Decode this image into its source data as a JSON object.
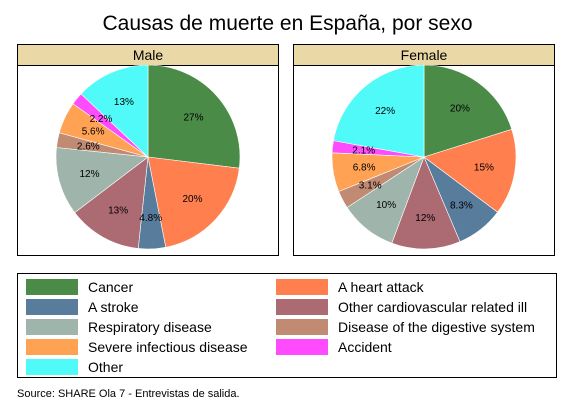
{
  "title": "Causas de muerte en España, por sexo",
  "source": "Source: SHARE Ola 7 - Entrevistas de salida.",
  "chart_data": [
    {
      "type": "pie",
      "panel_label": "Male",
      "start": "12 o'clock, clockwise",
      "slices": [
        {
          "category": "Cancer",
          "value": 27,
          "label": "27%"
        },
        {
          "category": "A heart attack",
          "value": 20,
          "label": "20%"
        },
        {
          "category": "A stroke",
          "value": 4.8,
          "label": "4.8%"
        },
        {
          "category": "Other cardiovascular related ill",
          "value": 13,
          "label": "13%"
        },
        {
          "category": "Respiratory disease",
          "value": 12,
          "label": "12%"
        },
        {
          "category": "Disease of the digestive system",
          "value": 2.6,
          "label": "2.6%"
        },
        {
          "category": "Severe infectious disease",
          "value": 5.6,
          "label": "5.6%"
        },
        {
          "category": "Accident",
          "value": 2.2,
          "label": "2.2%"
        },
        {
          "category": "Other",
          "value": 13,
          "label": "13%"
        }
      ]
    },
    {
      "type": "pie",
      "panel_label": "Female",
      "start": "12 o'clock, clockwise",
      "slices": [
        {
          "category": "Cancer",
          "value": 20,
          "label": "20%"
        },
        {
          "category": "A heart attack",
          "value": 15,
          "label": "15%"
        },
        {
          "category": "A stroke",
          "value": 8.3,
          "label": "8.3%"
        },
        {
          "category": "Other cardiovascular related ill",
          "value": 12,
          "label": "12%"
        },
        {
          "category": "Respiratory disease",
          "value": 10,
          "label": "10%"
        },
        {
          "category": "Disease of the digestive system",
          "value": 3.1,
          "label": "3.1%"
        },
        {
          "category": "Severe infectious disease",
          "value": 6.8,
          "label": "6.8%"
        },
        {
          "category": "Accident",
          "value": 2.1,
          "label": "2.1%"
        },
        {
          "category": "Other",
          "value": 22,
          "label": "22%"
        }
      ]
    }
  ],
  "legend": {
    "placement": "bottom",
    "items": [
      {
        "label": "Cancer",
        "color": "#4a8b47"
      },
      {
        "label": "A heart attack",
        "color": "#ff7f4f"
      },
      {
        "label": "A stroke",
        "color": "#587c9b"
      },
      {
        "label": "Other cardiovascular related ill",
        "color": "#ac6a72"
      },
      {
        "label": "Respiratory disease",
        "color": "#9fb4aa"
      },
      {
        "label": "Disease of the digestive system",
        "color": "#c08a73"
      },
      {
        "label": "Severe infectious disease",
        "color": "#ffa254"
      },
      {
        "label": "Accident",
        "color": "#fe4bfe"
      },
      {
        "label": "Other",
        "color": "#4ffaf8"
      }
    ]
  }
}
